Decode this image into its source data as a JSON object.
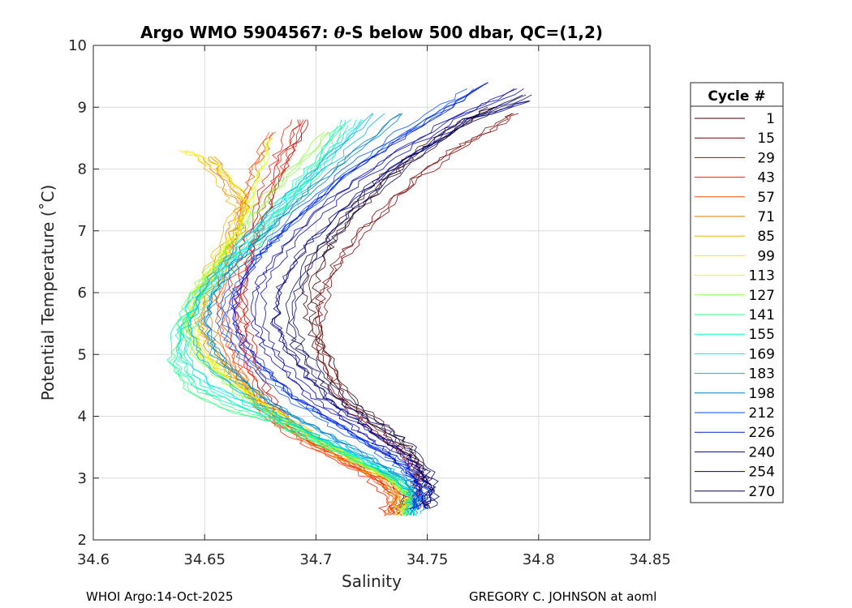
{
  "chart_data": {
    "type": "line",
    "title_prefix": "Argo WMO 5904567: ",
    "title_theta": "θ",
    "title_suffix": "-S below 500 dbar,  QC=(1,2)",
    "xlabel": "Salinity",
    "ylabel": "Potential Temperature (˚C)",
    "xlim": [
      34.6,
      34.85
    ],
    "ylim": [
      2,
      10
    ],
    "xticks": [
      34.6,
      34.65,
      34.7,
      34.75,
      34.8,
      34.85
    ],
    "xtick_labels": [
      "34.6",
      "34.65",
      "34.7",
      "34.75",
      "34.8",
      "34.85"
    ],
    "yticks": [
      2,
      3,
      4,
      5,
      6,
      7,
      8,
      9,
      10
    ],
    "ytick_labels": [
      "2",
      "3",
      "4",
      "5",
      "6",
      "7",
      "8",
      "9",
      "10"
    ],
    "grid": true,
    "legend": {
      "title": "Cycle #",
      "position": "right",
      "entries": [
        {
          "label": "1",
          "color": "#3a0000"
        },
        {
          "label": "15",
          "color": "#7a0000"
        },
        {
          "label": "29",
          "color": "#c00000"
        },
        {
          "label": "43",
          "color": "#ff1a00"
        },
        {
          "label": "57",
          "color": "#ff4d00"
        },
        {
          "label": "71",
          "color": "#e07800"
        },
        {
          "label": "85",
          "color": "#f0b400"
        },
        {
          "label": "99",
          "color": "#ffe600"
        },
        {
          "label": "113",
          "color": "#d8ff1a"
        },
        {
          "label": "127",
          "color": "#8cff40"
        },
        {
          "label": "141",
          "color": "#30ff80"
        },
        {
          "label": "155",
          "color": "#00ffb0"
        },
        {
          "label": "169",
          "color": "#00e6e6"
        },
        {
          "label": "183",
          "color": "#00b4e6"
        },
        {
          "label": "198",
          "color": "#0080c8"
        },
        {
          "label": "212",
          "color": "#0050ff"
        },
        {
          "label": "226",
          "color": "#0020e0"
        },
        {
          "label": "240",
          "color": "#0000b0"
        },
        {
          "label": "254",
          "color": "#000080"
        },
        {
          "label": "270",
          "color": "#00005a"
        }
      ]
    },
    "series": [
      {
        "name": "1",
        "s": [
          34.738,
          34.745,
          34.747,
          34.745,
          34.738,
          34.728,
          34.718,
          34.71,
          34.704,
          34.7,
          34.698,
          34.699,
          34.703,
          34.71,
          34.72,
          34.73,
          34.74,
          34.752,
          34.765,
          34.78
        ],
        "t": [
          2.5,
          2.8,
          3.0,
          3.3,
          3.6,
          3.9,
          4.2,
          4.6,
          5.0,
          5.4,
          5.8,
          6.2,
          6.6,
          7.0,
          7.4,
          7.8,
          8.1,
          8.4,
          8.7,
          9.0
        ]
      },
      {
        "name": "15",
        "s": [
          34.742,
          34.748,
          34.746,
          34.74,
          34.73,
          34.72,
          34.712,
          34.706,
          34.703,
          34.702,
          34.704,
          34.708,
          34.715,
          34.725,
          34.735,
          34.748,
          34.762,
          34.778,
          34.79
        ],
        "t": [
          2.5,
          2.8,
          3.1,
          3.4,
          3.7,
          4.0,
          4.3,
          4.7,
          5.1,
          5.5,
          5.9,
          6.3,
          6.7,
          7.1,
          7.5,
          7.9,
          8.3,
          8.6,
          8.9
        ]
      },
      {
        "name": "29",
        "s": [
          34.735,
          34.738,
          34.73,
          34.715,
          34.7,
          34.688,
          34.678,
          34.672,
          34.668,
          34.666,
          34.667,
          34.67,
          34.676,
          34.682,
          34.688,
          34.694
        ],
        "t": [
          2.4,
          2.7,
          3.0,
          3.3,
          3.6,
          3.9,
          4.3,
          4.8,
          5.3,
          5.8,
          6.3,
          6.8,
          7.3,
          7.8,
          8.3,
          8.8
        ]
      },
      {
        "name": "43",
        "s": [
          34.732,
          34.735,
          34.726,
          34.71,
          34.695,
          34.682,
          34.673,
          34.668,
          34.665,
          34.664,
          34.666,
          34.67,
          34.675,
          34.68,
          34.686,
          34.692
        ],
        "t": [
          2.4,
          2.7,
          3.0,
          3.3,
          3.6,
          3.9,
          4.3,
          4.8,
          5.3,
          5.8,
          6.3,
          6.8,
          7.3,
          7.8,
          8.3,
          8.8
        ]
      },
      {
        "name": "57",
        "s": [
          34.734,
          34.736,
          34.728,
          34.712,
          34.697,
          34.684,
          34.674,
          34.666,
          34.66,
          34.658,
          34.66,
          34.664,
          34.668,
          34.672,
          34.676,
          34.682
        ],
        "t": [
          2.4,
          2.7,
          3.0,
          3.3,
          3.6,
          3.9,
          4.3,
          4.8,
          5.3,
          5.8,
          6.3,
          6.8,
          7.3,
          7.8,
          8.2,
          8.6
        ]
      },
      {
        "name": "71",
        "s": [
          34.736,
          34.738,
          34.73,
          34.714,
          34.7,
          34.686,
          34.676,
          34.666,
          34.656,
          34.65,
          34.652,
          34.658,
          34.664,
          34.668,
          34.66,
          34.652
        ],
        "t": [
          2.4,
          2.7,
          3.0,
          3.3,
          3.6,
          3.9,
          4.2,
          4.6,
          5.0,
          5.5,
          6.0,
          6.5,
          7.0,
          7.4,
          7.8,
          8.2
        ]
      },
      {
        "name": "85",
        "s": [
          34.737,
          34.739,
          34.731,
          34.715,
          34.701,
          34.688,
          34.676,
          34.664,
          34.652,
          34.645,
          34.648,
          34.655,
          34.662,
          34.665,
          34.658,
          34.65
        ],
        "t": [
          2.4,
          2.7,
          3.0,
          3.3,
          3.6,
          3.9,
          4.2,
          4.6,
          5.0,
          5.5,
          6.0,
          6.5,
          7.0,
          7.4,
          7.8,
          8.2
        ]
      },
      {
        "name": "99",
        "s": [
          34.738,
          34.74,
          34.732,
          34.716,
          34.702,
          34.689,
          34.676,
          34.662,
          34.65,
          34.644,
          34.647,
          34.656,
          34.664,
          34.668,
          34.66,
          34.648,
          34.64
        ],
        "t": [
          2.4,
          2.7,
          3.0,
          3.3,
          3.6,
          3.9,
          4.2,
          4.6,
          5.0,
          5.5,
          6.0,
          6.5,
          7.0,
          7.5,
          7.9,
          8.2,
          8.3
        ]
      },
      {
        "name": "113",
        "s": [
          34.739,
          34.741,
          34.733,
          34.717,
          34.702,
          34.688,
          34.674,
          34.66,
          34.648,
          34.642,
          34.646,
          34.655,
          34.664,
          34.67,
          34.675,
          34.68
        ],
        "t": [
          2.4,
          2.7,
          3.0,
          3.3,
          3.6,
          3.9,
          4.2,
          4.6,
          5.0,
          5.5,
          6.0,
          6.5,
          7.0,
          7.5,
          8.0,
          8.5
        ]
      },
      {
        "name": "127",
        "s": [
          34.74,
          34.742,
          34.734,
          34.718,
          34.702,
          34.687,
          34.672,
          34.658,
          34.646,
          34.64,
          34.645,
          34.655,
          34.666,
          34.676,
          34.69,
          34.705
        ],
        "t": [
          2.4,
          2.7,
          3.0,
          3.3,
          3.6,
          3.9,
          4.2,
          4.6,
          5.0,
          5.5,
          6.0,
          6.5,
          7.0,
          7.5,
          8.0,
          8.6
        ]
      },
      {
        "name": "141",
        "s": [
          34.741,
          34.743,
          34.735,
          34.718,
          34.7,
          34.682,
          34.662,
          34.645,
          34.638,
          34.64,
          34.648,
          34.66,
          34.674,
          34.688,
          34.702,
          34.712
        ],
        "t": [
          2.4,
          2.7,
          3.0,
          3.3,
          3.6,
          3.9,
          4.1,
          4.4,
          4.8,
          5.3,
          5.8,
          6.3,
          6.8,
          7.4,
          8.0,
          8.7
        ]
      },
      {
        "name": "155",
        "s": [
          34.742,
          34.744,
          34.736,
          34.72,
          34.702,
          34.684,
          34.664,
          34.646,
          34.637,
          34.638,
          34.646,
          34.658,
          34.672,
          34.686,
          34.7,
          34.714
        ],
        "t": [
          2.4,
          2.7,
          3.0,
          3.3,
          3.6,
          3.9,
          4.2,
          4.5,
          4.9,
          5.4,
          5.9,
          6.4,
          6.9,
          7.5,
          8.1,
          8.8
        ]
      },
      {
        "name": "169",
        "s": [
          34.743,
          34.745,
          34.737,
          34.722,
          34.705,
          34.688,
          34.67,
          34.652,
          34.642,
          34.64,
          34.646,
          34.658,
          34.672,
          34.688,
          34.704,
          34.72
        ],
        "t": [
          2.4,
          2.7,
          3.0,
          3.3,
          3.6,
          3.9,
          4.2,
          4.5,
          4.9,
          5.4,
          5.9,
          6.4,
          6.9,
          7.5,
          8.1,
          8.8
        ]
      },
      {
        "name": "183",
        "s": [
          34.744,
          34.746,
          34.738,
          34.724,
          34.708,
          34.692,
          34.676,
          34.66,
          34.65,
          34.646,
          34.65,
          34.66,
          34.674,
          34.69,
          34.708,
          34.728
        ],
        "t": [
          2.4,
          2.7,
          3.0,
          3.3,
          3.6,
          3.9,
          4.2,
          4.6,
          5.0,
          5.5,
          6.0,
          6.5,
          7.0,
          7.6,
          8.2,
          8.9
        ]
      },
      {
        "name": "198",
        "s": [
          34.745,
          34.747,
          34.74,
          34.727,
          34.712,
          34.697,
          34.682,
          34.668,
          34.657,
          34.652,
          34.656,
          34.666,
          34.68,
          34.697,
          34.716,
          34.74
        ],
        "t": [
          2.4,
          2.7,
          3.0,
          3.3,
          3.6,
          3.9,
          4.2,
          4.6,
          5.0,
          5.5,
          6.0,
          6.5,
          7.0,
          7.6,
          8.2,
          8.9
        ]
      },
      {
        "name": "212",
        "s": [
          34.746,
          34.748,
          34.742,
          34.73,
          34.716,
          34.702,
          34.688,
          34.675,
          34.664,
          34.658,
          34.66,
          34.67,
          34.684,
          34.702,
          34.722,
          34.748,
          34.77
        ],
        "t": [
          2.5,
          2.8,
          3.1,
          3.4,
          3.7,
          4.0,
          4.3,
          4.7,
          5.1,
          5.5,
          6.0,
          6.5,
          7.0,
          7.6,
          8.2,
          8.8,
          9.3
        ]
      },
      {
        "name": "226",
        "s": [
          34.747,
          34.749,
          34.744,
          34.733,
          34.72,
          34.707,
          34.694,
          34.682,
          34.672,
          34.666,
          34.667,
          34.675,
          34.688,
          34.706,
          34.728,
          34.754,
          34.78
        ],
        "t": [
          2.5,
          2.8,
          3.1,
          3.4,
          3.7,
          4.0,
          4.3,
          4.7,
          5.1,
          5.5,
          6.0,
          6.5,
          7.0,
          7.6,
          8.2,
          8.8,
          9.4
        ]
      },
      {
        "name": "240",
        "s": [
          34.748,
          34.75,
          34.746,
          34.736,
          34.724,
          34.712,
          34.7,
          34.689,
          34.68,
          34.675,
          34.675,
          34.682,
          34.694,
          34.712,
          34.735,
          34.762,
          34.792
        ],
        "t": [
          2.5,
          2.8,
          3.1,
          3.4,
          3.7,
          4.0,
          4.3,
          4.7,
          5.1,
          5.5,
          6.0,
          6.5,
          7.0,
          7.6,
          8.2,
          8.8,
          9.3
        ]
      },
      {
        "name": "254",
        "s": [
          34.749,
          34.751,
          34.748,
          34.74,
          34.728,
          34.716,
          34.705,
          34.695,
          34.687,
          34.682,
          34.683,
          34.69,
          34.702,
          34.72,
          34.742,
          34.768,
          34.796
        ],
        "t": [
          2.5,
          2.8,
          3.1,
          3.4,
          3.7,
          4.0,
          4.3,
          4.7,
          5.1,
          5.5,
          6.0,
          6.5,
          7.0,
          7.6,
          8.2,
          8.8,
          9.1
        ]
      },
      {
        "name": "270",
        "s": [
          34.75,
          34.752,
          34.75,
          34.744,
          34.734,
          34.722,
          34.71,
          34.7,
          34.692,
          34.688,
          34.69,
          34.697,
          34.708,
          34.724,
          34.744,
          34.768,
          34.794
        ],
        "t": [
          2.5,
          2.8,
          3.1,
          3.4,
          3.7,
          4.0,
          4.3,
          4.7,
          5.1,
          5.5,
          6.0,
          6.5,
          7.0,
          7.6,
          8.2,
          8.8,
          9.2
        ]
      }
    ]
  },
  "footer": {
    "left": "WHOI Argo:14-Oct-2025",
    "right": "GREGORY C. JOHNSON at aoml"
  }
}
